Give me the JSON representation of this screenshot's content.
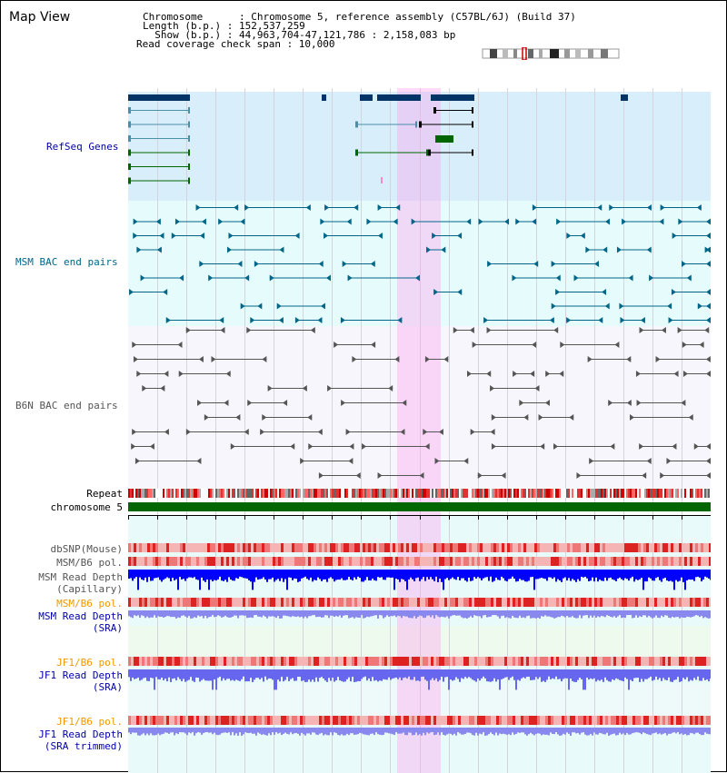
{
  "title": "Map View",
  "info": {
    "chromosome_label": "Chromosome      : Chromosome 5, reference assembly (C57BL/6J) (Build 37)",
    "length_label": "Length (b.p.) : 152,537,259",
    "show_label": "  Show (b.p.) : 44,963,704-47,121,786 : 2,158,083 bp",
    "span_label": "Read coverage check span : 10,000"
  },
  "tracks": {
    "refseq": "RefSeq Genes",
    "msm_bac": "MSM BAC end pairs",
    "b6n_bac": "B6N BAC end pairs",
    "repeat": "Repeat",
    "chromosome": "chromosome 5",
    "dbsnp": "dbSNP(Mouse)",
    "msm_b6_pol_1": "MSM/B6 pol.",
    "msm_read_depth_cap_1": "MSM Read Depth",
    "msm_read_depth_cap_2": "(Capillary)",
    "msm_b6_pol_2": "MSM/B6 pol.",
    "msm_read_depth_sra_1": "MSM Read Depth",
    "msm_read_depth_sra_2": "(SRA)",
    "jf1_b6_pol_1": "JF1/B6 pol.",
    "jf1_read_depth_sra_1": "JF1 Read Depth",
    "jf1_read_depth_sra_2": "(SRA)",
    "jf1_b6_pol_2": "JF1/B6 pol.",
    "jf1_read_depth_trim_1": "JF1 Read Depth",
    "jf1_read_depth_trim_2": "(SRA trimmed)"
  },
  "axis": {
    "ticks": [
      "45200000",
      "45600000",
      "46000000",
      "46400000",
      "46800000"
    ]
  },
  "colors": {
    "highlight": "#ff99ee",
    "refseq_bg": "#d8eefa",
    "msm_bg": "#e6fcfc",
    "b6n_bg": "#f6f6fc",
    "refseq_gene": "#003366",
    "refseq_green": "#006600",
    "msm_pair": "#006688",
    "b6n_pair": "#555555",
    "snp_red": "#dd2222",
    "depth_blue": "#0000ff",
    "chromosome_green": "#006600",
    "orange_label": "#ee9900",
    "blue_label": "#0000aa",
    "teal_label": "#006688"
  }
}
